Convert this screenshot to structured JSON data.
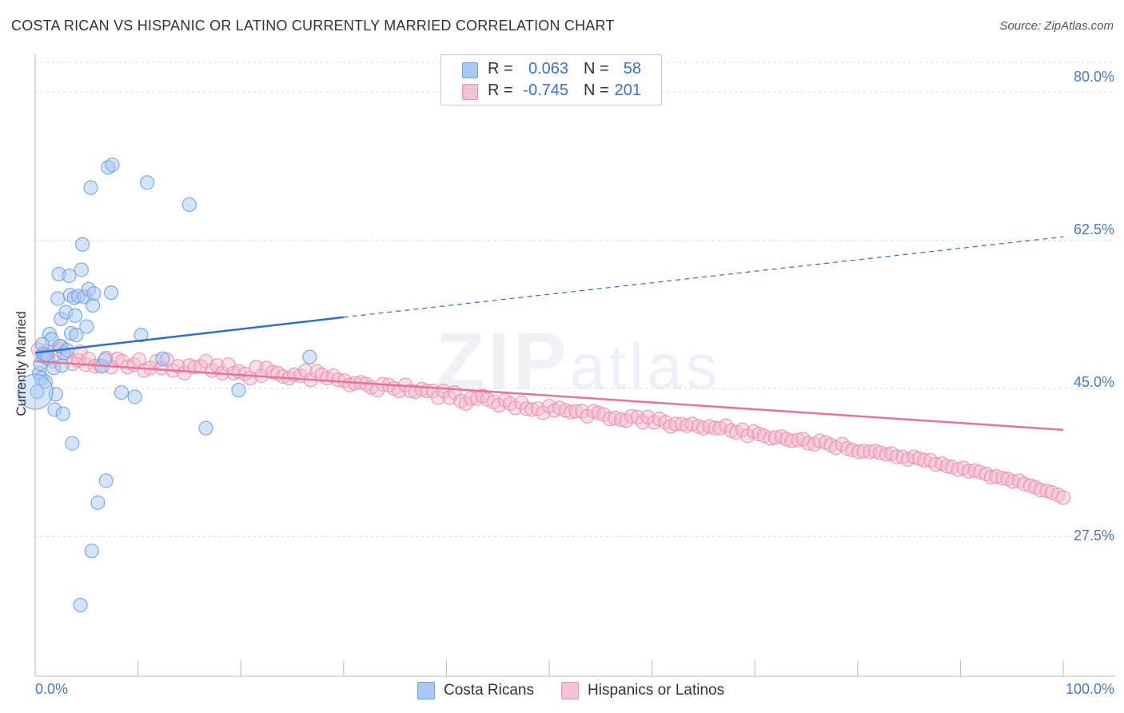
{
  "header": {
    "title": "COSTA RICAN VS HISPANIC OR LATINO CURRENTLY MARRIED CORRELATION CHART",
    "source": "Source: ZipAtlas.com"
  },
  "watermark": {
    "zip": "ZIP",
    "atlas": "atlas"
  },
  "legend": {
    "rows": [
      {
        "r_label": "R =",
        "r_value": "0.063",
        "n_label": "N =",
        "n_value": "58"
      },
      {
        "r_label": "R =",
        "r_value": "-0.745",
        "n_label": "N =",
        "n_value": "201"
      }
    ]
  },
  "colors": {
    "blue_fill": "#a9c8f2",
    "blue_stroke": "#6f9fe0",
    "blue_line": "#2f6fc9",
    "pink_fill": "#f5b6cc",
    "pink_stroke": "#ec8fb0",
    "pink_line": "#e8739a",
    "grid": "#d8d8d8",
    "axis": "#bbbbbb",
    "tick_text": "#4a78c2"
  },
  "chart_data": {
    "type": "scatter",
    "title": "COSTA RICAN VS HISPANIC OR LATINO CURRENTLY MARRIED CORRELATION CHART",
    "xlabel": "",
    "ylabel": "Currently Married",
    "xlim": [
      0,
      100
    ],
    "ylim": [
      11.0,
      83.5
    ],
    "x_tick_labels": [
      "0.0%",
      "100.0%"
    ],
    "y_ticks": [
      {
        "value": 27.5,
        "label": "27.5%"
      },
      {
        "value": 45.0,
        "label": "45.0%"
      },
      {
        "value": 62.5,
        "label": "62.5%"
      },
      {
        "value": 80.0,
        "label": "80.0%"
      }
    ],
    "series": [
      {
        "name": "Costa Ricans",
        "r": 0.063,
        "n": 58,
        "trend": {
          "x0": 0,
          "y0": 49.2,
          "x1": 30,
          "y1": 53.4,
          "x_dash_end": 100,
          "y_dash_end": 62.9
        },
        "points": [
          [
            0.2,
            44.6
          ],
          [
            0.4,
            46.8
          ],
          [
            0.5,
            47.9
          ],
          [
            0.6,
            46.2
          ],
          [
            0.8,
            49.1
          ],
          [
            0.9,
            48.8
          ],
          [
            1.0,
            45.8
          ],
          [
            1.2,
            48.5
          ],
          [
            1.4,
            51.4
          ],
          [
            1.6,
            50.8
          ],
          [
            1.8,
            47.4
          ],
          [
            1.9,
            42.5
          ],
          [
            2.0,
            44.3
          ],
          [
            2.2,
            55.6
          ],
          [
            2.3,
            58.5
          ],
          [
            2.5,
            53.2
          ],
          [
            2.6,
            47.7
          ],
          [
            2.7,
            42.0
          ],
          [
            2.8,
            49.2
          ],
          [
            3.0,
            54.0
          ],
          [
            3.3,
            58.3
          ],
          [
            3.4,
            56.0
          ],
          [
            3.5,
            51.5
          ],
          [
            3.6,
            38.5
          ],
          [
            3.8,
            55.7
          ],
          [
            3.9,
            53.6
          ],
          [
            4.0,
            51.3
          ],
          [
            4.2,
            55.9
          ],
          [
            4.5,
            59.0
          ],
          [
            4.6,
            62.0
          ],
          [
            4.8,
            55.8
          ],
          [
            5.0,
            52.3
          ],
          [
            5.2,
            56.7
          ],
          [
            5.4,
            68.7
          ],
          [
            5.6,
            54.8
          ],
          [
            5.7,
            56.2
          ],
          [
            6.1,
            31.5
          ],
          [
            6.5,
            47.6
          ],
          [
            6.8,
            48.4
          ],
          [
            6.9,
            34.1
          ],
          [
            7.1,
            71.1
          ],
          [
            7.4,
            56.3
          ],
          [
            7.5,
            71.4
          ],
          [
            8.4,
            44.5
          ],
          [
            9.7,
            44.0
          ],
          [
            10.3,
            51.3
          ],
          [
            10.9,
            69.3
          ],
          [
            12.4,
            48.5
          ],
          [
            15.0,
            66.7
          ],
          [
            16.6,
            40.3
          ],
          [
            19.8,
            44.8
          ],
          [
            26.7,
            48.7
          ],
          [
            4.4,
            19.4
          ],
          [
            5.5,
            25.8
          ],
          [
            1.1,
            49.0
          ],
          [
            2.4,
            50.0
          ],
          [
            3.1,
            49.5
          ],
          [
            0.7,
            50.2
          ]
        ]
      },
      {
        "name": "Hispanics or Latinos",
        "r": -0.745,
        "n": 201,
        "trend": {
          "x0": 0,
          "y0": 48.2,
          "x1": 100,
          "y1": 40.1
        },
        "points": [
          [
            0.3,
            49.6
          ],
          [
            0.8,
            48.9
          ],
          [
            1.2,
            49.4
          ],
          [
            1.7,
            48.2
          ],
          [
            2.3,
            49.6
          ],
          [
            2.6,
            49.9
          ],
          [
            3.1,
            48.7
          ],
          [
            3.6,
            47.9
          ],
          [
            4.2,
            48.3
          ],
          [
            4.4,
            49.3
          ],
          [
            4.9,
            47.8
          ],
          [
            5.2,
            48.5
          ],
          [
            5.8,
            47.6
          ],
          [
            6.3,
            47.7
          ],
          [
            6.9,
            48.6
          ],
          [
            7.4,
            47.5
          ],
          [
            8.0,
            48.5
          ],
          [
            8.5,
            48.2
          ],
          [
            9.0,
            47.5
          ],
          [
            9.6,
            47.8
          ],
          [
            10.1,
            48.4
          ],
          [
            10.6,
            47.1
          ],
          [
            11.2,
            47.4
          ],
          [
            11.8,
            48.2
          ],
          [
            12.3,
            47.4
          ],
          [
            12.8,
            48.4
          ],
          [
            13.4,
            47.1
          ],
          [
            13.9,
            47.6
          ],
          [
            14.5,
            46.8
          ],
          [
            15.0,
            47.7
          ],
          [
            15.5,
            47.5
          ],
          [
            16.1,
            47.6
          ],
          [
            16.6,
            48.2
          ],
          [
            17.2,
            47.1
          ],
          [
            17.7,
            47.7
          ],
          [
            18.2,
            46.8
          ],
          [
            18.8,
            47.8
          ],
          [
            19.3,
            46.8
          ],
          [
            19.8,
            47.0
          ],
          [
            20.4,
            46.7
          ],
          [
            20.9,
            46.2
          ],
          [
            21.5,
            47.5
          ],
          [
            22.0,
            46.5
          ],
          [
            22.5,
            47.4
          ],
          [
            23.1,
            46.9
          ],
          [
            23.6,
            46.8
          ],
          [
            24.1,
            46.4
          ],
          [
            24.7,
            46.2
          ],
          [
            25.2,
            46.6
          ],
          [
            25.8,
            46.5
          ],
          [
            26.3,
            47.1
          ],
          [
            26.8,
            46.0
          ],
          [
            27.4,
            47.0
          ],
          [
            27.9,
            46.6
          ],
          [
            28.4,
            46.2
          ],
          [
            29.0,
            46.5
          ],
          [
            29.5,
            46.0
          ],
          [
            30.1,
            45.9
          ],
          [
            30.6,
            45.4
          ],
          [
            31.1,
            45.6
          ],
          [
            31.7,
            45.7
          ],
          [
            32.2,
            45.5
          ],
          [
            32.7,
            45.1
          ],
          [
            33.3,
            44.8
          ],
          [
            33.8,
            45.5
          ],
          [
            34.4,
            45.4
          ],
          [
            34.9,
            45.0
          ],
          [
            35.4,
            44.7
          ],
          [
            36.0,
            45.4
          ],
          [
            36.5,
            44.7
          ],
          [
            37.0,
            44.6
          ],
          [
            37.6,
            44.9
          ],
          [
            38.1,
            44.7
          ],
          [
            38.7,
            44.7
          ],
          [
            39.2,
            43.9
          ],
          [
            39.7,
            44.7
          ],
          [
            40.3,
            43.9
          ],
          [
            40.8,
            44.5
          ],
          [
            41.4,
            43.5
          ],
          [
            41.9,
            43.2
          ],
          [
            42.4,
            43.8
          ],
          [
            43.0,
            43.8
          ],
          [
            43.5,
            44.1
          ],
          [
            44.0,
            43.7
          ],
          [
            44.6,
            43.4
          ],
          [
            45.1,
            43.0
          ],
          [
            45.7,
            43.6
          ],
          [
            46.2,
            43.2
          ],
          [
            46.7,
            42.7
          ],
          [
            47.3,
            43.3
          ],
          [
            47.8,
            42.6
          ],
          [
            48.3,
            42.5
          ],
          [
            48.9,
            42.6
          ],
          [
            49.4,
            42.1
          ],
          [
            50.0,
            42.9
          ],
          [
            50.5,
            42.4
          ],
          [
            51.0,
            42.7
          ],
          [
            51.6,
            42.4
          ],
          [
            52.1,
            42.2
          ],
          [
            52.6,
            42.3
          ],
          [
            53.2,
            42.3
          ],
          [
            53.7,
            41.7
          ],
          [
            54.3,
            42.3
          ],
          [
            54.8,
            42.1
          ],
          [
            55.3,
            41.9
          ],
          [
            55.9,
            41.4
          ],
          [
            56.4,
            41.5
          ],
          [
            57.0,
            41.3
          ],
          [
            57.5,
            41.2
          ],
          [
            58.0,
            41.7
          ],
          [
            58.6,
            41.6
          ],
          [
            59.1,
            41.0
          ],
          [
            59.6,
            41.6
          ],
          [
            60.2,
            41.0
          ],
          [
            60.7,
            41.4
          ],
          [
            61.3,
            41.0
          ],
          [
            61.8,
            40.5
          ],
          [
            62.3,
            40.8
          ],
          [
            62.9,
            40.8
          ],
          [
            63.4,
            40.6
          ],
          [
            63.9,
            40.8
          ],
          [
            64.5,
            40.5
          ],
          [
            65.0,
            40.3
          ],
          [
            65.6,
            40.5
          ],
          [
            66.1,
            40.3
          ],
          [
            66.6,
            40.3
          ],
          [
            67.2,
            40.6
          ],
          [
            67.7,
            40.0
          ],
          [
            68.2,
            39.8
          ],
          [
            68.8,
            40.1
          ],
          [
            69.3,
            39.4
          ],
          [
            69.9,
            39.9
          ],
          [
            70.4,
            39.6
          ],
          [
            70.9,
            39.4
          ],
          [
            71.5,
            39.1
          ],
          [
            72.0,
            39.2
          ],
          [
            72.6,
            39.3
          ],
          [
            73.1,
            39.0
          ],
          [
            73.6,
            38.8
          ],
          [
            74.2,
            38.9
          ],
          [
            74.7,
            39.0
          ],
          [
            75.2,
            38.5
          ],
          [
            75.8,
            38.4
          ],
          [
            76.3,
            38.8
          ],
          [
            76.9,
            38.6
          ],
          [
            77.4,
            38.3
          ],
          [
            77.9,
            38.0
          ],
          [
            78.5,
            38.4
          ],
          [
            79.0,
            37.9
          ],
          [
            79.5,
            37.7
          ],
          [
            80.1,
            37.5
          ],
          [
            80.6,
            37.6
          ],
          [
            81.2,
            37.5
          ],
          [
            81.7,
            37.6
          ],
          [
            82.2,
            37.4
          ],
          [
            82.8,
            37.2
          ],
          [
            83.3,
            37.3
          ],
          [
            83.8,
            36.9
          ],
          [
            84.4,
            36.9
          ],
          [
            84.9,
            36.6
          ],
          [
            85.5,
            36.9
          ],
          [
            86.0,
            36.7
          ],
          [
            86.5,
            36.5
          ],
          [
            87.1,
            36.5
          ],
          [
            87.6,
            36.0
          ],
          [
            88.2,
            36.1
          ],
          [
            88.7,
            35.8
          ],
          [
            89.2,
            35.7
          ],
          [
            89.8,
            35.4
          ],
          [
            90.3,
            35.6
          ],
          [
            90.8,
            35.2
          ],
          [
            91.4,
            35.3
          ],
          [
            91.9,
            35.1
          ],
          [
            92.5,
            34.9
          ],
          [
            93.0,
            34.5
          ],
          [
            93.5,
            34.6
          ],
          [
            94.1,
            34.4
          ],
          [
            94.6,
            34.3
          ],
          [
            95.1,
            34.0
          ],
          [
            95.7,
            34.1
          ],
          [
            96.2,
            33.7
          ],
          [
            96.8,
            33.5
          ],
          [
            97.3,
            33.3
          ],
          [
            97.8,
            33.0
          ],
          [
            98.4,
            32.9
          ],
          [
            98.9,
            32.7
          ],
          [
            99.5,
            32.4
          ],
          [
            100.0,
            32.1
          ]
        ]
      }
    ]
  },
  "bottom_legend": [
    {
      "label": "Costa Ricans"
    },
    {
      "label": "Hispanics or Latinos"
    }
  ]
}
